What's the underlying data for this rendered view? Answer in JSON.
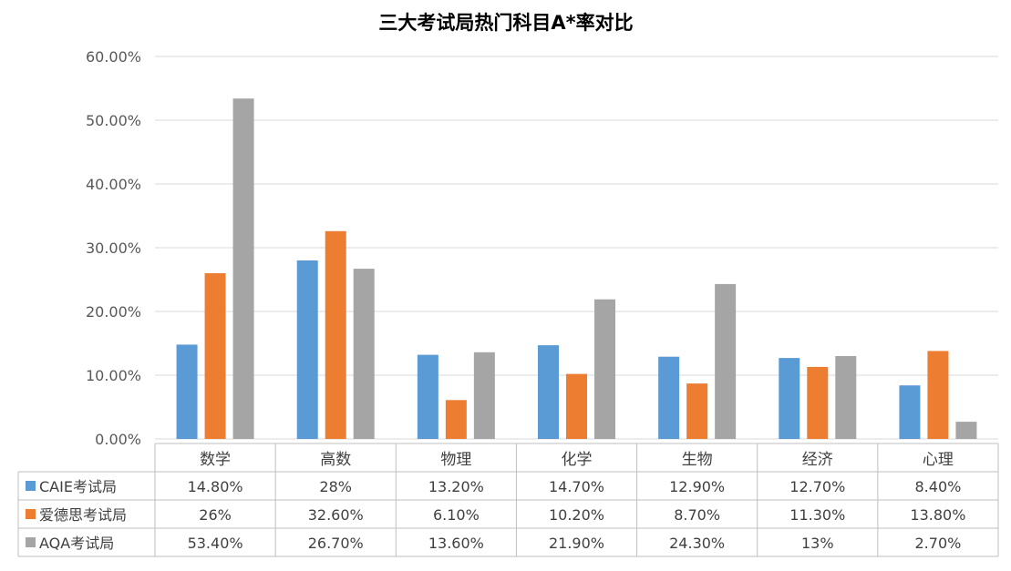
{
  "chart_data": {
    "type": "bar",
    "title": "三大考试局热门科目A*率对比",
    "categories": [
      "数学",
      "高数",
      "物理",
      "化学",
      "生物",
      "经济",
      "心理"
    ],
    "ylim": [
      0,
      60
    ],
    "y_ticks": [
      0,
      10,
      20,
      30,
      40,
      50,
      60
    ],
    "y_tick_labels": [
      "0.00%",
      "10.00%",
      "20.00%",
      "30.00%",
      "40.00%",
      "50.00%",
      "60.00%"
    ],
    "grid": true,
    "legend": "data-table-left",
    "series": [
      {
        "name": "CAIE考试局",
        "color": "#5B9BD5",
        "values": [
          14.8,
          28,
          13.2,
          14.7,
          12.9,
          12.7,
          8.4
        ],
        "labels": [
          "14.80%",
          "28%",
          "13.20%",
          "14.70%",
          "12.90%",
          "12.70%",
          "8.40%"
        ]
      },
      {
        "name": "爱德思考试局",
        "color": "#ED7D31",
        "values": [
          26,
          32.6,
          6.1,
          10.2,
          8.7,
          11.3,
          13.8
        ],
        "labels": [
          "26%",
          "32.60%",
          "6.10%",
          "10.20%",
          "8.70%",
          "11.30%",
          "13.80%"
        ]
      },
      {
        "name": "AQA考试局",
        "color": "#A5A5A5",
        "values": [
          53.4,
          26.7,
          13.6,
          21.9,
          24.3,
          13,
          2.7
        ],
        "labels": [
          "53.40%",
          "26.70%",
          "13.60%",
          "21.90%",
          "24.30%",
          "13%",
          "2.70%"
        ]
      }
    ]
  }
}
